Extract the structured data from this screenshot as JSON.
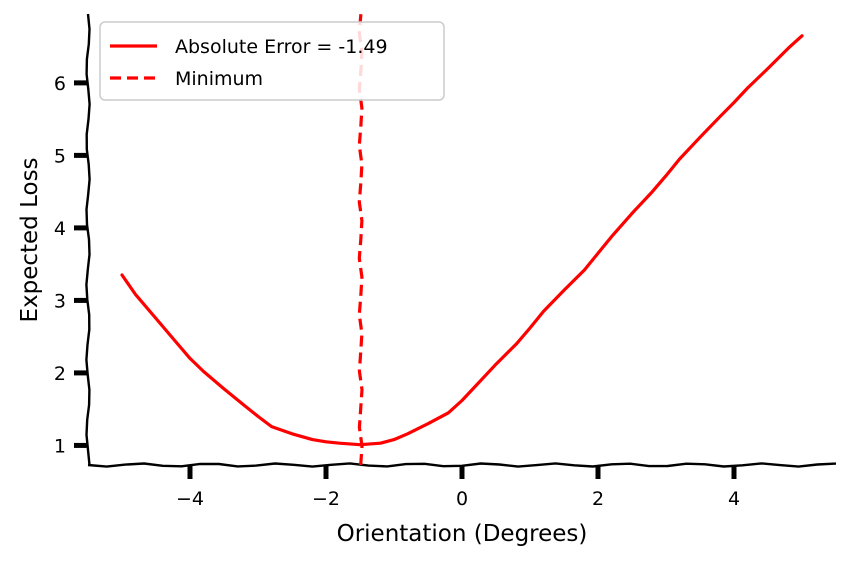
{
  "chart_data": {
    "type": "line",
    "xlabel": "Orientation (Degrees)",
    "ylabel": "Expected Loss",
    "xlim": [
      -5.5,
      5.5
    ],
    "ylim": [
      0.73,
      6.95
    ],
    "xticks": [
      -4,
      -2,
      0,
      2,
      4
    ],
    "xtick_labels": [
      "−4",
      "−2",
      "0",
      "2",
      "4"
    ],
    "yticks": [
      1,
      2,
      3,
      4,
      5,
      6
    ],
    "ytick_labels": [
      "1",
      "2",
      "3",
      "4",
      "5",
      "6"
    ],
    "grid": false,
    "legend_position": "top-left",
    "series": [
      {
        "name": "Absolute Error = -1.49",
        "color": "#ff0000",
        "style": "solid",
        "x": [
          -5.0,
          -4.8,
          -4.5,
          -4.2,
          -4.0,
          -3.8,
          -3.5,
          -3.2,
          -3.0,
          -2.8,
          -2.5,
          -2.2,
          -2.0,
          -1.8,
          -1.5,
          -1.2,
          -1.0,
          -0.8,
          -0.5,
          -0.2,
          0.0,
          0.2,
          0.5,
          0.8,
          1.0,
          1.2,
          1.5,
          1.8,
          2.0,
          2.2,
          2.5,
          2.8,
          3.0,
          3.2,
          3.5,
          3.8,
          4.0,
          4.2,
          4.5,
          4.8,
          5.0
        ],
        "y": [
          3.35,
          3.08,
          2.75,
          2.42,
          2.2,
          2.02,
          1.78,
          1.55,
          1.4,
          1.26,
          1.16,
          1.08,
          1.05,
          1.03,
          1.01,
          1.03,
          1.08,
          1.16,
          1.3,
          1.45,
          1.62,
          1.82,
          2.12,
          2.4,
          2.62,
          2.85,
          3.14,
          3.42,
          3.65,
          3.88,
          4.2,
          4.5,
          4.72,
          4.95,
          5.25,
          5.54,
          5.73,
          5.93,
          6.2,
          6.48,
          6.65
        ]
      },
      {
        "name": "Minimum",
        "color": "#ff0000",
        "style": "dashed",
        "x": [
          -1.49,
          -1.49
        ],
        "y": [
          0.73,
          6.95
        ]
      }
    ]
  }
}
